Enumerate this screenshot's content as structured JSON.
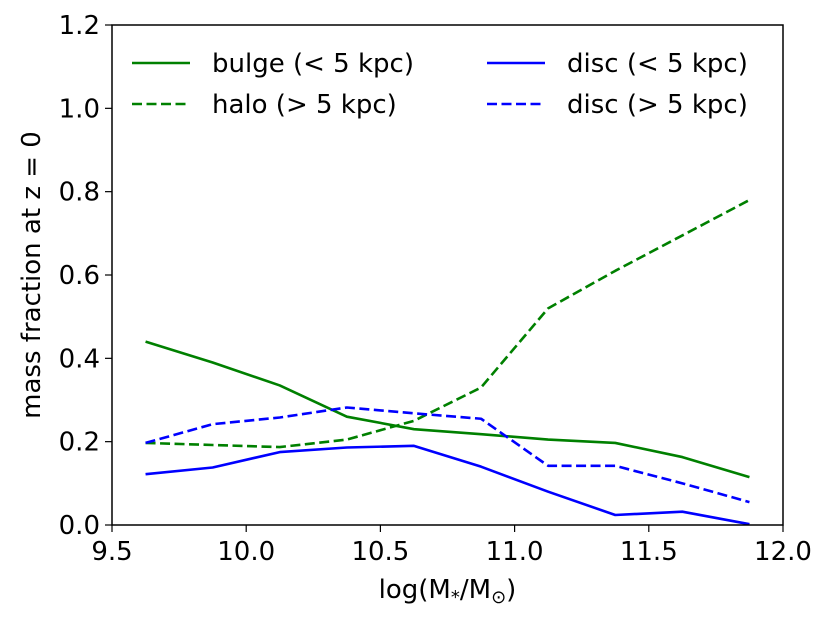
{
  "chart_data": {
    "type": "line",
    "title": "",
    "xlabel_parts": {
      "prefix": "log(M",
      "sub1": "*",
      "mid": "/M",
      "sub2": "⊙",
      "suffix": ")"
    },
    "ylabel": "mass fraction at z = 0",
    "xlim": [
      9.5,
      12.0
    ],
    "ylim": [
      0.0,
      1.2
    ],
    "xticks": [
      "9.5",
      "10.0",
      "10.5",
      "11.0",
      "11.5",
      "12.0"
    ],
    "yticks": [
      "0.0",
      "0.2",
      "0.4",
      "0.6",
      "0.8",
      "1.0",
      "1.2"
    ],
    "x": [
      9.625,
      9.875,
      10.125,
      10.375,
      10.625,
      10.875,
      11.125,
      11.375,
      11.625,
      11.875
    ],
    "legend_position": "top",
    "series": [
      {
        "name": "bulge (< 5 kpc)",
        "color": "#008000",
        "dash": "solid",
        "values": [
          0.44,
          0.39,
          0.335,
          0.26,
          0.23,
          0.218,
          0.205,
          0.197,
          0.163,
          0.115
        ]
      },
      {
        "name": "halo (> 5 kpc)",
        "color": "#008000",
        "dash": "dashed",
        "values": [
          0.197,
          0.192,
          0.187,
          0.205,
          0.25,
          0.33,
          0.52,
          0.61,
          0.695,
          0.78
        ]
      },
      {
        "name": "disc (< 5 kpc)",
        "color": "#0000ff",
        "dash": "solid",
        "values": [
          0.122,
          0.138,
          0.175,
          0.186,
          0.19,
          0.14,
          0.08,
          0.024,
          0.032,
          0.002
        ]
      },
      {
        "name": "disc (> 5 kpc)",
        "color": "#0000ff",
        "dash": "dashed",
        "values": [
          0.197,
          0.242,
          0.258,
          0.282,
          0.268,
          0.255,
          0.142,
          0.142,
          0.1,
          0.055
        ]
      }
    ]
  }
}
